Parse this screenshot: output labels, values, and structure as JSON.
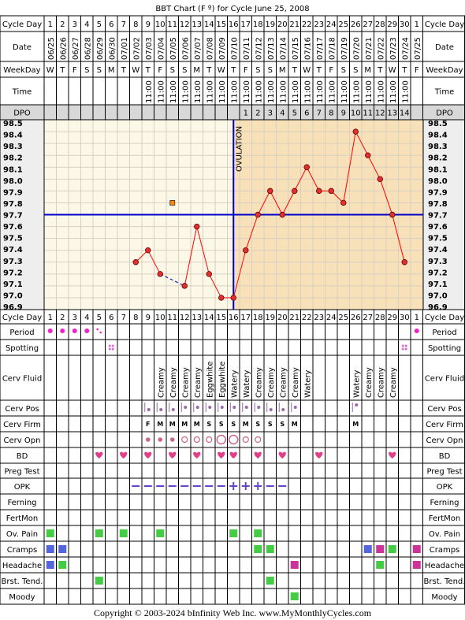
{
  "title": "BBT Chart (F º) for Cycle June 25, 2008",
  "copyright": "Copyright © 2003-2024 bInfinity Web Inc.    www.MyMonthlyCycles.com",
  "ovulation_label": "OVULATION",
  "row_labels": {
    "cycle_day": "Cycle Day",
    "date": "Date",
    "weekday": "WeekDay",
    "time": "Time",
    "dpo": "DPO",
    "period": "Period",
    "spotting": "Spotting",
    "cerv_fluid": "Cerv Fluid",
    "cerv_pos": "Cerv Pos",
    "cerv_firm": "Cerv Firm",
    "cerv_opn": "Cerv Opn",
    "bd": "BD",
    "preg_test": "Preg Test",
    "opk": "OPK",
    "ferning": "Ferning",
    "fertmon": "FertMon",
    "ov_pain": "Ov. Pain",
    "cramps": "Cramps",
    "headache": "Headache",
    "brst_tend": "Brst. Tend.",
    "moody": "Moody"
  },
  "colors": {
    "pre_ov_bg": "#fcf8e8",
    "post_ov_bg": "#f8e0b8",
    "grid": "#d8d0c0",
    "line": "#ff0000",
    "point_fill": "#e03030",
    "coverline": "#0000cc",
    "ovulation_line": "#0000cc",
    "heart": "#e0408a",
    "green": "#44cc44",
    "blue": "#5566dd",
    "magenta": "#cc3399",
    "cerv_marks": "#9966aa",
    "opk": "#6644cc",
    "spotting": "#dd66cc",
    "period": "#ee22cc"
  },
  "cycle_days": [
    1,
    2,
    3,
    4,
    5,
    6,
    7,
    8,
    9,
    10,
    11,
    12,
    13,
    14,
    15,
    16,
    17,
    18,
    19,
    20,
    21,
    22,
    23,
    24,
    25,
    26,
    27,
    28,
    29,
    30,
    1
  ],
  "dates": [
    "06/25",
    "06/26",
    "06/27",
    "06/28",
    "06/29",
    "06/30",
    "07/01",
    "07/02",
    "07/03",
    "07/04",
    "07/05",
    "07/06",
    "07/07",
    "07/08",
    "07/09",
    "07/10",
    "07/11",
    "07/12",
    "07/13",
    "07/14",
    "07/15",
    "07/16",
    "07/17",
    "07/18",
    "07/19",
    "07/20",
    "07/21",
    "07/22",
    "07/23",
    "07/24",
    "07/25"
  ],
  "weekdays": [
    "W",
    "T",
    "F",
    "S",
    "S",
    "M",
    "T",
    "W",
    "T",
    "F",
    "S",
    "S",
    "M",
    "T",
    "W",
    "T",
    "F",
    "S",
    "S",
    "M",
    "T",
    "W",
    "T",
    "F",
    "S",
    "S",
    "M",
    "T",
    "W",
    "T",
    "F"
  ],
  "times": [
    "",
    "",
    "",
    "",
    "",
    "",
    "",
    "",
    "11:00",
    "11:00",
    "11:00",
    "11:00",
    "11:00",
    "11:00",
    "11:00",
    "11:00",
    "11:00",
    "11:00",
    "11:00",
    "11:00",
    "11:00",
    "11:00",
    "11:00",
    "11:00",
    "11:00",
    "11:00",
    "11:00",
    "11:00",
    "11:00",
    "11:00",
    ""
  ],
  "dpo": [
    "",
    "",
    "",
    "",
    "",
    "",
    "",
    "",
    "",
    "",
    "",
    "",
    "",
    "",
    "",
    "",
    "1",
    "2",
    "3",
    "4",
    "5",
    "6",
    "7",
    "8",
    "9",
    "10",
    "11",
    "12",
    "13",
    "14",
    ""
  ],
  "chart_data": {
    "type": "line",
    "x": [
      1,
      2,
      3,
      4,
      5,
      6,
      7,
      8,
      9,
      10,
      11,
      12,
      13,
      14,
      15,
      16,
      17,
      18,
      19,
      20,
      21,
      22,
      23,
      24,
      25,
      26,
      27,
      28,
      29,
      30,
      31
    ],
    "temps": [
      null,
      null,
      null,
      null,
      null,
      null,
      null,
      97.3,
      97.4,
      97.2,
      null,
      97.1,
      97.6,
      97.2,
      97.0,
      97.0,
      97.4,
      97.7,
      97.9,
      97.7,
      97.9,
      98.1,
      97.9,
      97.9,
      97.8,
      98.4,
      98.2,
      98.0,
      97.7,
      97.3,
      null
    ],
    "dashed_segment": [
      10,
      12
    ],
    "discarded_point": {
      "day": 11,
      "temp": 97.8
    },
    "coverline": 97.7,
    "ovulation_day": 16,
    "ylim": [
      96.9,
      98.5
    ],
    "y_ticks": [
      "98.5",
      "98.4",
      "98.3",
      "98.2",
      "98.1",
      "98.0",
      "97.9",
      "97.8",
      "97.7",
      "97.6",
      "97.5",
      "97.4",
      "97.3",
      "97.2",
      "97.1",
      "97.0",
      "96.9"
    ]
  },
  "period": {
    "1": "dot",
    "2": "dot",
    "3": "dot",
    "4": "dot",
    "5": "spot",
    "31": "dot"
  },
  "spotting": [
    6,
    30
  ],
  "cerv_fluid": {
    "10": "Creamy",
    "11": "Creamy",
    "12": "Creamy",
    "13": "Creamy",
    "14": "Eggwhite",
    "15": "Eggwhite",
    "16": "Watery",
    "17": "Watery",
    "18": "Creamy",
    "19": "Creamy",
    "20": "Creamy",
    "21": "Creamy",
    "22": "Watery",
    "26": "Watery",
    "27": "Creamy",
    "28": "Creamy",
    "29": "Creamy"
  },
  "cerv_pos": {
    "9": "low",
    "10": "low",
    "11": "low",
    "12": "mid",
    "13": "mid",
    "14": "mid",
    "15": "mid",
    "16": "mid",
    "17": "mid",
    "18": "mid",
    "19": "low",
    "20": "low",
    "21": "mid",
    "26": "high"
  },
  "cerv_firm": {
    "9": "F",
    "10": "M",
    "11": "M",
    "12": "M",
    "13": "M",
    "14": "S",
    "15": "S",
    "16": "S",
    "17": "M",
    "18": "S",
    "19": "S",
    "20": "S",
    "21": "M",
    "26": "M"
  },
  "cerv_opn": {
    "9": "dot",
    "10": "dot",
    "11": "dot",
    "12": "ring",
    "13": "ring",
    "14": "ring",
    "15": "big",
    "16": "big",
    "17": "ring",
    "18": "ring"
  },
  "bd": [
    5,
    7,
    9,
    11,
    13,
    15,
    16,
    18,
    20,
    23,
    29
  ],
  "opk": {
    "8": "-",
    "9": "-",
    "10": "-",
    "11": "-",
    "12": "-",
    "13": "-",
    "14": "-",
    "15": "-",
    "16": "+",
    "17": "+",
    "18": "+",
    "19": "-",
    "20": "-"
  },
  "ov_pain": [
    1,
    5,
    7,
    10,
    16,
    18
  ],
  "cramps": {
    "1": "blue",
    "2": "blue",
    "18": "green",
    "19": "green",
    "27": "blue",
    "28": "magenta",
    "29": "green",
    "31": "magenta"
  },
  "headache": {
    "1": "blue",
    "2": "green",
    "21": "magenta",
    "28": "green",
    "31": "magenta"
  },
  "brst_tend": [
    5,
    19
  ],
  "moody": [
    21
  ]
}
